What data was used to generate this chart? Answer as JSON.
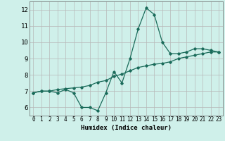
{
  "xlabel": "Humidex (Indice chaleur)",
  "background_color": "#cff0ea",
  "grid_color": "#b8b8b8",
  "line_color": "#1a6b5a",
  "xlim": [
    -0.5,
    23.5
  ],
  "ylim": [
    5.5,
    12.5
  ],
  "yticks": [
    6,
    7,
    8,
    9,
    10,
    11,
    12
  ],
  "xticks": [
    0,
    1,
    2,
    3,
    4,
    5,
    6,
    7,
    8,
    9,
    10,
    11,
    12,
    13,
    14,
    15,
    16,
    17,
    18,
    19,
    20,
    21,
    22,
    23
  ],
  "curve1_x": [
    0,
    1,
    2,
    3,
    4,
    5,
    6,
    7,
    8,
    9,
    10,
    11,
    12,
    13,
    14,
    15,
    16,
    17,
    18,
    19,
    20,
    21,
    22,
    23
  ],
  "curve1_y": [
    6.9,
    7.0,
    7.0,
    6.9,
    7.1,
    6.9,
    6.0,
    6.0,
    5.8,
    6.9,
    8.2,
    7.5,
    9.0,
    10.8,
    12.1,
    11.7,
    10.0,
    9.3,
    9.3,
    9.4,
    9.6,
    9.6,
    9.5,
    9.4
  ],
  "curve2_x": [
    0,
    1,
    2,
    3,
    4,
    5,
    6,
    7,
    8,
    9,
    10,
    11,
    12,
    13,
    14,
    15,
    16,
    17,
    18,
    19,
    20,
    21,
    22,
    23
  ],
  "curve2_y": [
    6.9,
    7.0,
    7.0,
    7.1,
    7.15,
    7.2,
    7.25,
    7.35,
    7.55,
    7.65,
    7.9,
    8.05,
    8.25,
    8.45,
    8.55,
    8.65,
    8.7,
    8.8,
    9.0,
    9.1,
    9.2,
    9.3,
    9.4,
    9.4
  ]
}
